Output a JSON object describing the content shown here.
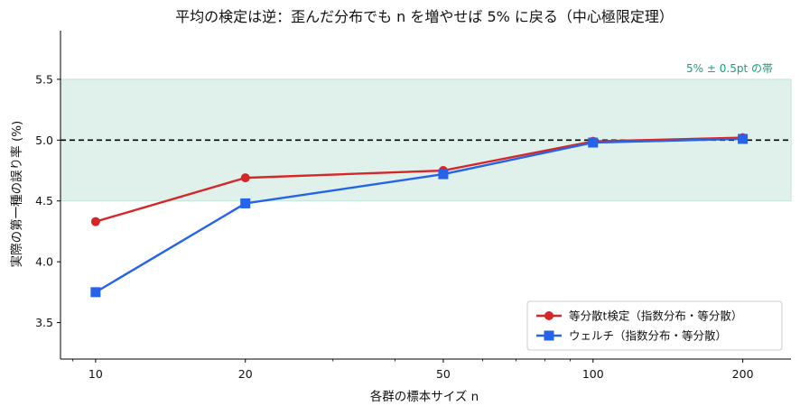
{
  "chart_data": {
    "type": "line",
    "title": "平均の検定は逆：歪んだ分布でも n を増やせば 5% に戻る（中心極限定理）",
    "xlabel": "各群の標本サイズ n",
    "ylabel": "実際の第一種の誤り率 (%)",
    "x_scale": "log",
    "x": [
      10,
      20,
      50,
      100,
      200
    ],
    "x_tick_labels": [
      "10",
      "20",
      "50",
      "100",
      "200"
    ],
    "xlim": [
      8.5,
      250
    ],
    "ylim": [
      3.2,
      5.9
    ],
    "y_ticks": [
      3.5,
      4.0,
      4.5,
      5.0,
      5.5
    ],
    "y_tick_labels": [
      "3.5",
      "4.0",
      "4.5",
      "5.0",
      "5.5"
    ],
    "series": [
      {
        "name": "等分散t検定（指数分布・等分散）",
        "values": [
          4.33,
          4.69,
          4.75,
          4.99,
          5.02
        ],
        "color": "#d62728",
        "marker": "circle"
      },
      {
        "name": "ウェルチ（指数分布・等分散）",
        "values": [
          3.75,
          4.48,
          4.72,
          4.98,
          5.01
        ],
        "color": "#2563eb",
        "marker": "square"
      }
    ],
    "reference_line": {
      "y": 5.0,
      "style": "dashed",
      "color": "#000000"
    },
    "band": {
      "y_range": [
        4.5,
        5.5
      ],
      "label": "5% ± 0.5pt の帯",
      "fill": "#dff1ea",
      "label_color": "#16a374"
    },
    "legend_position": "lower-right",
    "grid": false
  }
}
